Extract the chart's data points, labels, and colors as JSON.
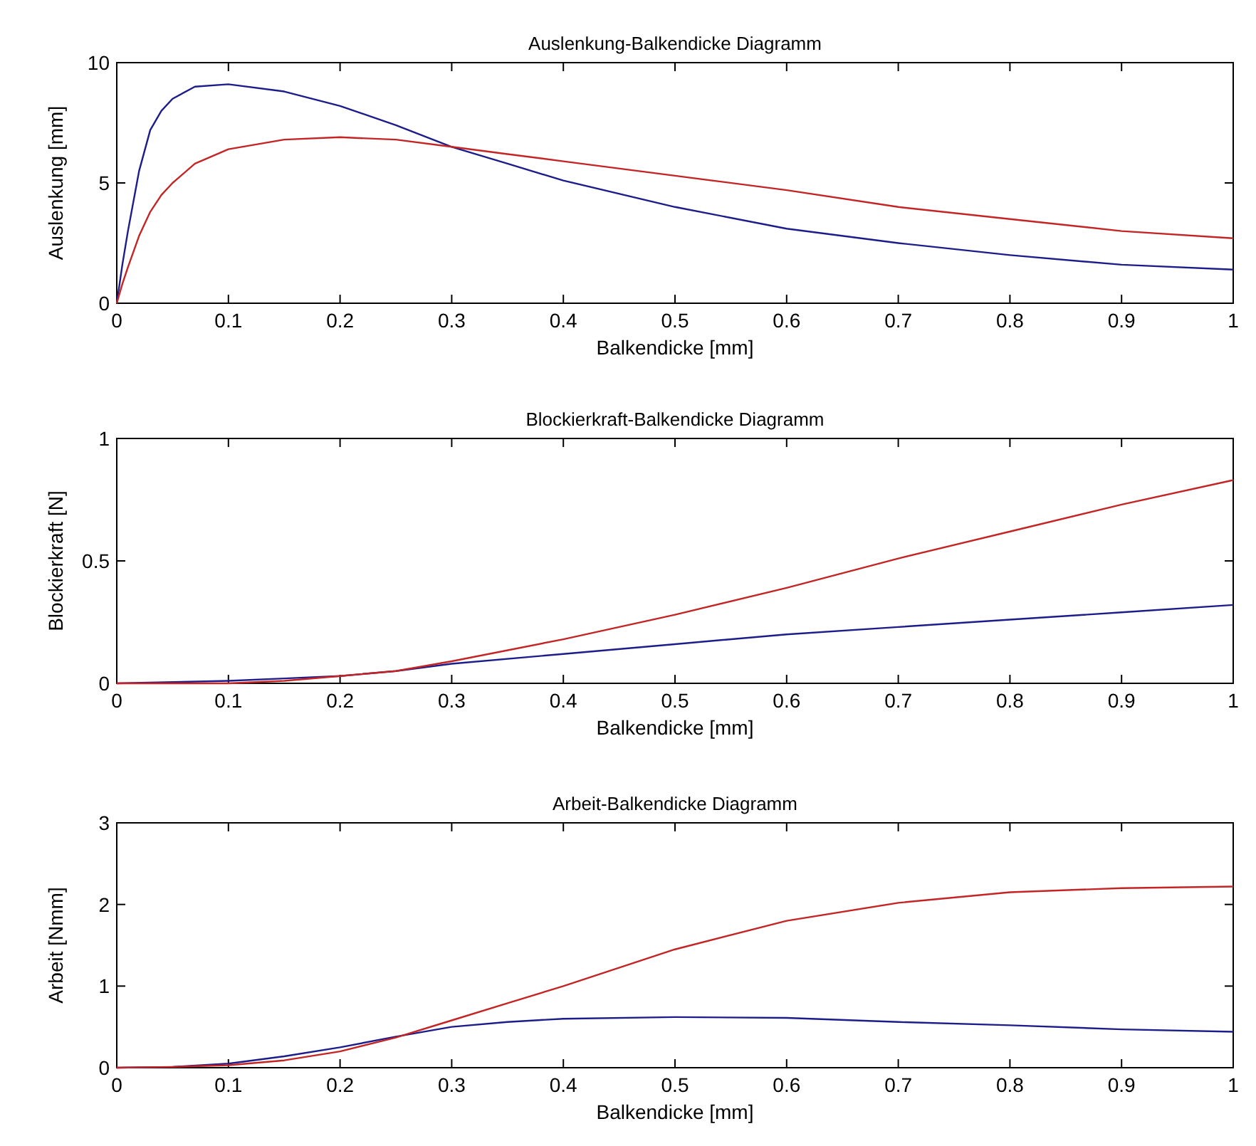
{
  "chart_data": [
    {
      "type": "line",
      "title": "Auslenkung-Balkendicke Diagramm",
      "xlabel": "Balkendicke [mm]",
      "ylabel": "Auslenkung [mm]",
      "x": [
        0,
        0.005,
        0.01,
        0.02,
        0.03,
        0.04,
        0.05,
        0.07,
        0.1,
        0.15,
        0.2,
        0.25,
        0.3,
        0.35,
        0.4,
        0.5,
        0.6,
        0.7,
        0.8,
        0.9,
        1.0
      ],
      "xlim": [
        0,
        1
      ],
      "ylim": [
        0,
        10
      ],
      "xticks": [
        0,
        0.1,
        0.2,
        0.3,
        0.4,
        0.5,
        0.6,
        0.7,
        0.8,
        0.9,
        1
      ],
      "yticks": [
        0,
        5,
        10
      ],
      "grid": false,
      "series": [
        {
          "color": "#1c1c8a",
          "values": [
            0,
            1.6,
            3,
            5.5,
            7.2,
            8,
            8.5,
            9,
            9.1,
            8.8,
            8.2,
            7.4,
            6.5,
            5.8,
            5.1,
            4,
            3.1,
            2.5,
            2,
            1.6,
            1.4
          ]
        },
        {
          "color": "#c42424",
          "values": [
            0,
            0.8,
            1.5,
            2.8,
            3.8,
            4.5,
            5,
            5.8,
            6.4,
            6.8,
            6.9,
            6.8,
            6.5,
            6.2,
            5.9,
            5.3,
            4.7,
            4,
            3.5,
            3,
            2.7
          ]
        }
      ]
    },
    {
      "type": "line",
      "title": "Blockierkraft-Balkendicke Diagramm",
      "xlabel": "Balkendicke [mm]",
      "ylabel": "Blockierkraft [N]",
      "x": [
        0,
        0.1,
        0.15,
        0.2,
        0.25,
        0.3,
        0.4,
        0.5,
        0.6,
        0.7,
        0.8,
        0.9,
        1.0
      ],
      "xlim": [
        0,
        1
      ],
      "ylim": [
        0,
        1
      ],
      "xticks": [
        0,
        0.1,
        0.2,
        0.3,
        0.4,
        0.5,
        0.6,
        0.7,
        0.8,
        0.9,
        1
      ],
      "yticks": [
        0,
        0.5,
        1
      ],
      "grid": false,
      "series": [
        {
          "color": "#1c1c8a",
          "values": [
            0,
            0.01,
            0.02,
            0.03,
            0.05,
            0.08,
            0.12,
            0.16,
            0.2,
            0.23,
            0.26,
            0.29,
            0.32
          ]
        },
        {
          "color": "#c42424",
          "values": [
            0,
            0,
            0.01,
            0.03,
            0.05,
            0.09,
            0.18,
            0.28,
            0.39,
            0.51,
            0.62,
            0.73,
            0.83
          ]
        }
      ]
    },
    {
      "type": "line",
      "title": "Arbeit-Balkendicke Diagramm",
      "xlabel": "Balkendicke [mm]",
      "ylabel": "Arbeit [Nmm]",
      "x": [
        0,
        0.05,
        0.1,
        0.15,
        0.2,
        0.25,
        0.3,
        0.35,
        0.4,
        0.5,
        0.6,
        0.7,
        0.8,
        0.9,
        1.0
      ],
      "xlim": [
        0,
        1
      ],
      "ylim": [
        0,
        3
      ],
      "xticks": [
        0,
        0.1,
        0.2,
        0.3,
        0.4,
        0.5,
        0.6,
        0.7,
        0.8,
        0.9,
        1
      ],
      "yticks": [
        0,
        1,
        2,
        3
      ],
      "grid": false,
      "series": [
        {
          "color": "#1c1c8a",
          "values": [
            0,
            0.01,
            0.05,
            0.14,
            0.25,
            0.38,
            0.5,
            0.56,
            0.6,
            0.62,
            0.61,
            0.56,
            0.52,
            0.47,
            0.44
          ]
        },
        {
          "color": "#c42424",
          "values": [
            0,
            0.01,
            0.03,
            0.09,
            0.2,
            0.37,
            0.58,
            0.79,
            1,
            1.45,
            1.8,
            2.02,
            2.15,
            2.2,
            2.22
          ]
        }
      ]
    }
  ]
}
